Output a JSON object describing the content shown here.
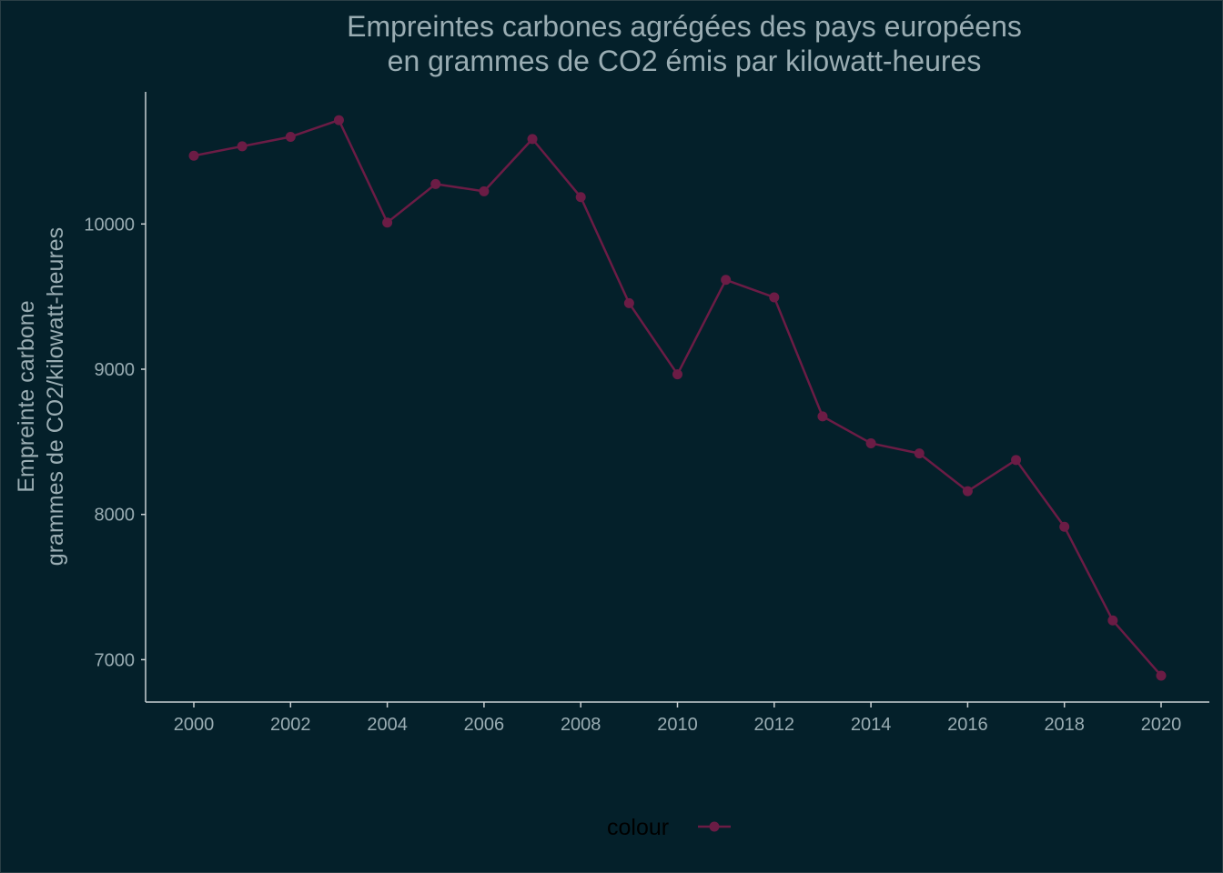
{
  "chart_data": {
    "type": "line",
    "title_lines": [
      "Empreintes carbones agrégées des pays européens",
      "en grammes de CO2 émis par kilowatt-heures"
    ],
    "ylabel_lines": [
      "Empreinte carbone",
      "grammes de CO2/kilowatt-heures"
    ],
    "xlabel": "",
    "x": [
      2000,
      2001,
      2002,
      2003,
      2004,
      2005,
      2006,
      2007,
      2008,
      2009,
      2010,
      2011,
      2012,
      2013,
      2014,
      2015,
      2016,
      2017,
      2018,
      2019,
      2020
    ],
    "series": [
      {
        "values": [
          10470,
          10535,
          10600,
          10715,
          10010,
          10275,
          10225,
          10585,
          10185,
          9455,
          8965,
          9615,
          9495,
          8675,
          8490,
          8420,
          8160,
          8375,
          7915,
          7270,
          6890
        ]
      }
    ],
    "x_ticks": [
      "2000",
      "2002",
      "2004",
      "2006",
      "2008",
      "2010",
      "2012",
      "2014",
      "2016",
      "2018",
      "2020"
    ],
    "y_ticks": [
      "7000",
      "8000",
      "9000",
      "10000"
    ],
    "xlim": [
      1999,
      2021
    ],
    "ylim": [
      6700,
      10900
    ],
    "grid": false,
    "legend": {
      "title": "colour",
      "position": "bottom"
    },
    "colors": {
      "background": "#04202a",
      "line": "#6b1c45",
      "text": "#9aadb3",
      "axis": "#c8d0d3"
    }
  }
}
